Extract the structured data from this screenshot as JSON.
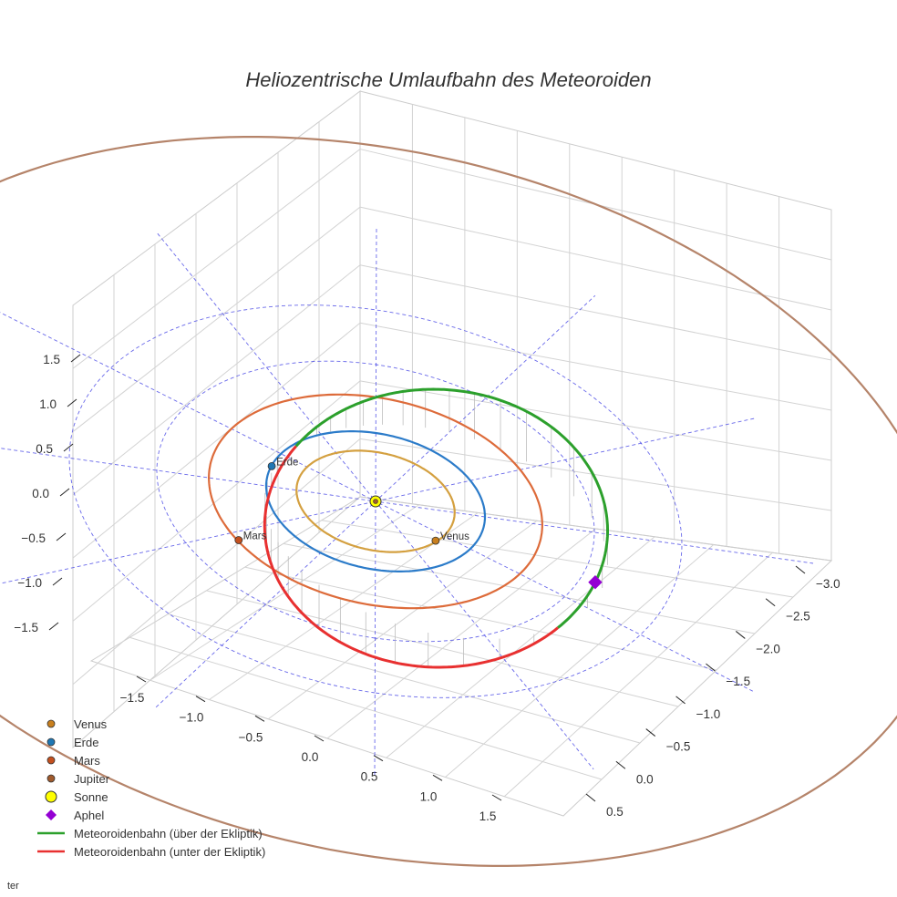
{
  "chart_data": {
    "type": "line",
    "projection": "3d",
    "title": "Heliozentrische Umlaufbahn des Meteoroiden",
    "xlabel": "",
    "ylabel": "",
    "zlabel": "",
    "x_ticks": [
      "−1.5",
      "−1.0",
      "−0.5",
      "0.0",
      "0.5",
      "1.0",
      "1.5"
    ],
    "y_ticks": [
      "−3.0",
      "−2.5",
      "−2.0",
      "−1.5",
      "−1.0",
      "−0.5",
      "0.0",
      "0.5"
    ],
    "z_ticks": [
      "1.5",
      "1.0",
      "0.5",
      "0.0",
      "−0.5",
      "−1.0",
      "−1.5"
    ],
    "x_range": [
      -1.8,
      1.8
    ],
    "y_range": [
      -3.0,
      0.5
    ],
    "z_range": [
      -1.8,
      1.8
    ],
    "grid": true,
    "legend_position": "bottom-left",
    "planet_orbits": [
      {
        "name": "Venus",
        "radius_au": 0.723,
        "color": "#d4a040"
      },
      {
        "name": "Erde",
        "radius_au": 1.0,
        "color": "#2b7bc9"
      },
      {
        "name": "Mars",
        "radius_au": 1.524,
        "color": "#dd6b3a"
      },
      {
        "name": "Jupiter",
        "radius_au": 5.2,
        "color": "#b5846a"
      }
    ],
    "ecliptic_rings_au": [
      2.0,
      2.8
    ],
    "planets": [
      {
        "name": "Venus",
        "x": 0.45,
        "y": -0.55,
        "z": 0.0,
        "color": "#c87f1e"
      },
      {
        "name": "Erde",
        "x": -0.3,
        "y": 0.95,
        "z": 0.0,
        "color": "#1f77b4"
      },
      {
        "name": "Mars",
        "x": 0.85,
        "y": 1.25,
        "z": 0.0,
        "color": "#c4501e"
      },
      {
        "name": "Jupiter",
        "x": 0.0,
        "y": 0.0,
        "z": 0.0,
        "color": "#a05a2c"
      }
    ],
    "sun": {
      "name": "Sonne",
      "x": 0,
      "y": 0,
      "z": 0,
      "color": "#ffff00"
    },
    "aphel": {
      "name": "Aphel",
      "color": "#9400d3"
    },
    "meteoroid_orbit": {
      "semi_major_axis_au": 1.6,
      "eccentricity": 0.4,
      "inclination_deg": 22,
      "perihelion_direction_deg": 120,
      "node_direction_deg": 130
    },
    "series": [
      {
        "name": "Meteoroidenbahn (über der Ekliptik)",
        "color": "#2ca02c"
      },
      {
        "name": "Meteoroidenbahn (unter der Ekliptik)",
        "color": "#e83030"
      }
    ],
    "legend": [
      {
        "label": "Venus",
        "kind": "dot",
        "color": "#c87f1e"
      },
      {
        "label": "Erde",
        "kind": "dot",
        "color": "#1f77b4"
      },
      {
        "label": "Mars",
        "kind": "dot",
        "color": "#c4501e"
      },
      {
        "label": "Jupiter",
        "kind": "dot",
        "color": "#a05a2c"
      },
      {
        "label": "Sonne",
        "kind": "sun",
        "color": "#ffff00"
      },
      {
        "label": "Aphel",
        "kind": "diamond",
        "color": "#9400d3"
      },
      {
        "label": "Meteoroidenbahn (über der Ekliptik)",
        "kind": "line",
        "color": "#2ca02c"
      },
      {
        "label": "Meteoroidenbahn (unter der Ekliptik)",
        "kind": "line",
        "color": "#e83030"
      }
    ],
    "footer_text": "ter"
  }
}
